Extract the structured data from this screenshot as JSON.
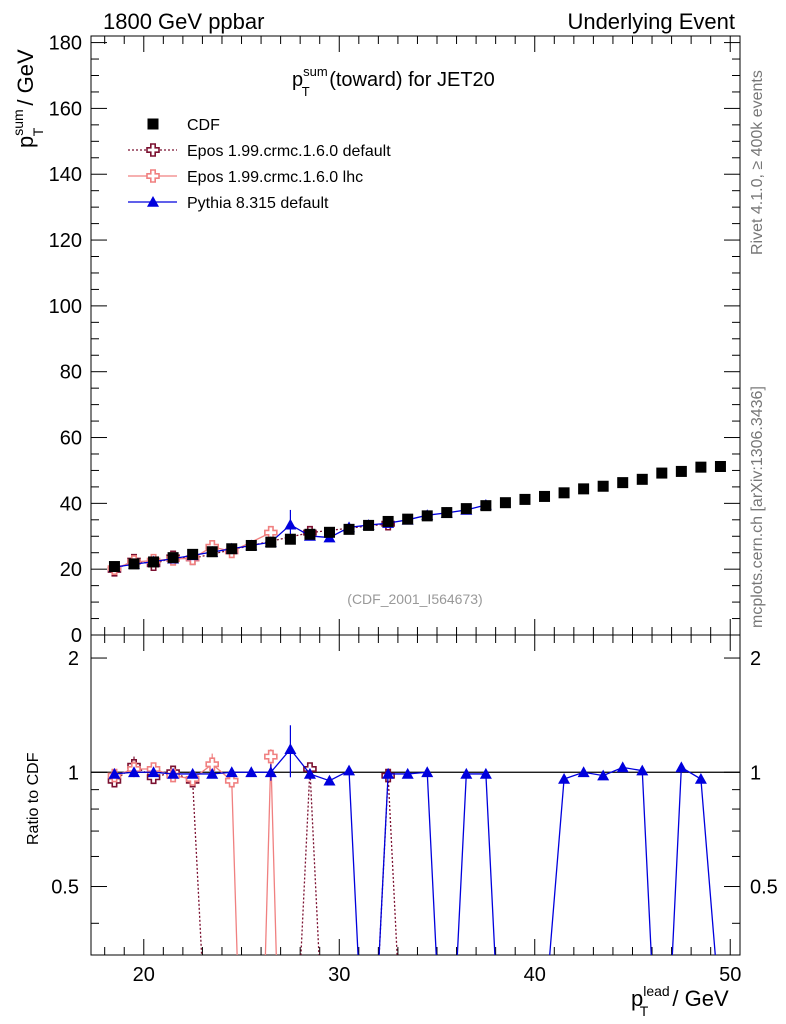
{
  "header": {
    "left_title": "1800 GeV ppbar",
    "right_title": "Underlying Event"
  },
  "side_labels": {
    "rivet": "Rivet 4.1.0, ≥ 400k events",
    "mcplots": "mcplots.cern.ch [arXiv:1306.3436]"
  },
  "chart_data": {
    "type": "scatter",
    "title": "p_T^sum (toward) for JET20",
    "title_main": "p",
    "title_sup": "sum",
    "title_sub": "T",
    "title_rest": " (toward) for JET20",
    "watermark": "(CDF_2001_I564673)",
    "ylabel_main": "p",
    "ylabel_sup": "sum",
    "ylabel_sub": "T",
    "ylabel_rest": " / GeV",
    "xlabel_main": "p",
    "xlabel_sup": "lead",
    "xlabel_sub": "T",
    "xlabel_rest": " / GeV",
    "ratio_ylabel": "Ratio to CDF",
    "xlim": [
      17.3,
      50.5
    ],
    "ylim": [
      0,
      182
    ],
    "ratio_ylim": [
      0.33,
      2.3
    ],
    "x_ticks": [
      20,
      30,
      40,
      50
    ],
    "x_tick_labels": [
      "20",
      "30",
      "40",
      "50"
    ],
    "y_ticks": [
      0,
      20,
      40,
      60,
      80,
      100,
      120,
      140,
      160,
      180
    ],
    "y_tick_labels": [
      "0",
      "20",
      "40",
      "60",
      "80",
      "100",
      "120",
      "140",
      "160",
      "180"
    ],
    "ratio_ticks": [
      0.5,
      1,
      2
    ],
    "ratio_tick_labels": [
      "0.5",
      "1",
      "2"
    ],
    "legend_position": "top-left",
    "x": [
      18.5,
      19.5,
      20.5,
      21.5,
      22.5,
      23.5,
      24.5,
      25.5,
      26.5,
      27.5,
      28.5,
      29.5,
      30.5,
      31.5,
      32.5,
      33.5,
      34.5,
      35.5,
      36.5,
      37.5,
      38.5,
      39.5,
      40.5,
      41.5,
      42.5,
      43.5,
      44.5,
      45.5,
      46.5,
      47.5,
      48.5,
      49.5
    ],
    "series": [
      {
        "name": "CDF",
        "style": "square",
        "color": "#000000",
        "values": [
          20.8,
          21.6,
          22.2,
          23.5,
          24.5,
          25.3,
          26.2,
          27.2,
          28.2,
          29.1,
          30.6,
          31.2,
          32.1,
          33.3,
          34.5,
          35.2,
          36.2,
          37.2,
          38.4,
          39.3,
          40.2,
          41.2,
          42.1,
          43.2,
          44.4,
          45.2,
          46.3,
          47.3,
          49.2,
          49.7,
          51.0,
          51.2
        ],
        "errors": [
          0.5,
          0.5,
          0.5,
          0.5,
          0.5,
          0.5,
          0.5,
          0.5,
          0.5,
          0.5,
          0.5,
          0.5,
          0.5,
          0.5,
          0.5,
          0.5,
          0.5,
          0.5,
          0.5,
          0.5,
          0.5,
          0.5,
          0.5,
          0.5,
          0.5,
          0.5,
          0.5,
          0.5,
          0.5,
          0.5,
          0.5,
          0.5
        ]
      },
      {
        "name": "Epos 1.99.crmc.1.6.0 default",
        "style": "open-cross-dotted",
        "color": "#7b1030",
        "x": [
          18.5,
          19.5,
          20.5,
          21.5,
          22.5,
          28.5,
          32.5
        ],
        "values": [
          19.8,
          22.6,
          21.5,
          23.6,
          23.3,
          31.1,
          33.8
        ],
        "errors": [
          0.6,
          1.1,
          0.8,
          0.7,
          0.8,
          1.0,
          1.0
        ],
        "ratio_x": [
          18.5,
          19.5,
          20.5,
          21.5,
          22.5,
          23.0,
          28.0,
          28.5,
          29.0,
          32.0,
          32.5,
          33.0
        ],
        "ratio": [
          0.95,
          1.04,
          0.97,
          1.0,
          0.95,
          0.3,
          0.3,
          1.02,
          0.3,
          0.3,
          0.98,
          0.3
        ],
        "ratio_err": [
          0.02,
          0.06,
          0.03,
          0.02,
          0.02,
          0,
          0,
          0.02,
          0,
          0,
          0.02,
          0
        ]
      },
      {
        "name": "Epos 1.99.crmc.1.6.0 lhc",
        "style": "open-cross-solid",
        "color": "#f08080",
        "x": [
          18.5,
          19.5,
          20.5,
          21.5,
          22.5,
          23.5,
          24.5,
          26.5
        ],
        "values": [
          20.3,
          22.2,
          22.6,
          23.1,
          23.3,
          26.8,
          25.4,
          31.1
        ],
        "errors": [
          0.6,
          1.2,
          0.9,
          0.8,
          0.9,
          1.4,
          1.1,
          1.6
        ],
        "ratio_x": [
          18.5,
          19.5,
          20.5,
          21.5,
          22.5,
          23.5,
          24.5,
          24.8,
          26.2,
          26.5,
          26.8
        ],
        "ratio": [
          0.98,
          1.02,
          1.02,
          0.98,
          0.96,
          1.05,
          0.95,
          0.3,
          0.3,
          1.1,
          0.3
        ],
        "ratio_err": [
          0.02,
          0.05,
          0.03,
          0.03,
          0.03,
          0.07,
          0.04,
          0,
          0,
          0.05,
          0
        ]
      },
      {
        "name": "Pythia 8.315 default",
        "style": "triangle",
        "color": "#0000dd",
        "x": [
          18.5,
          19.5,
          20.5,
          21.5,
          22.5,
          23.5,
          24.5,
          25.5,
          26.5,
          27.5,
          28.5,
          29.5,
          30.5,
          31.5,
          32.5,
          33.5,
          34.5,
          35.5,
          36.5,
          37.5
        ],
        "values": [
          20.6,
          21.5,
          22.3,
          23.2,
          24.2,
          25.2,
          26.2,
          27.2,
          28.2,
          33.5,
          30.1,
          29.6,
          32.7,
          33.4,
          34.0,
          35.0,
          36.4,
          37.1,
          38.0,
          39.5
        ],
        "errors": [
          0.5,
          0.6,
          0.6,
          0.6,
          0.6,
          0.7,
          0.7,
          0.8,
          1.5,
          4.5,
          1.0,
          0.8,
          0.8,
          0.8,
          0.8,
          0.8,
          0.9,
          0.9,
          0.9,
          0.9
        ],
        "ratio_x": [
          18.5,
          19.5,
          20.5,
          21.5,
          22.5,
          23.5,
          24.5,
          25.5,
          26.5,
          27.5,
          28.5,
          29.5,
          30.5,
          31.0,
          32.0,
          32.5,
          33.5,
          34.5,
          35.0,
          36.0,
          36.5,
          37.5,
          38.0,
          40.7,
          41.5,
          42.5,
          43.5,
          44.5,
          45.5,
          46.0,
          47.0,
          47.5,
          48.5,
          49.3
        ],
        "ratio": [
          0.99,
          1.0,
          1.0,
          0.99,
          0.99,
          0.99,
          1.0,
          1.0,
          1.0,
          1.15,
          0.99,
          0.95,
          1.01,
          0.3,
          0.3,
          0.99,
          0.99,
          1.0,
          0.3,
          0.3,
          0.99,
          0.99,
          0.3,
          0.3,
          0.96,
          1.0,
          0.98,
          1.03,
          1.01,
          0.3,
          0.3,
          1.03,
          0.96,
          0.3
        ],
        "ratio_err": [
          0.02,
          0.02,
          0.02,
          0.02,
          0.02,
          0.02,
          0.02,
          0.02,
          0.05,
          0.18,
          0.03,
          0.02,
          0.02,
          0,
          0,
          0.02,
          0.02,
          0.02,
          0,
          0,
          0.02,
          0.02,
          0,
          0,
          0.02,
          0.02,
          0.02,
          0.02,
          0.02,
          0,
          0,
          0.02,
          0.02,
          0
        ]
      }
    ]
  }
}
